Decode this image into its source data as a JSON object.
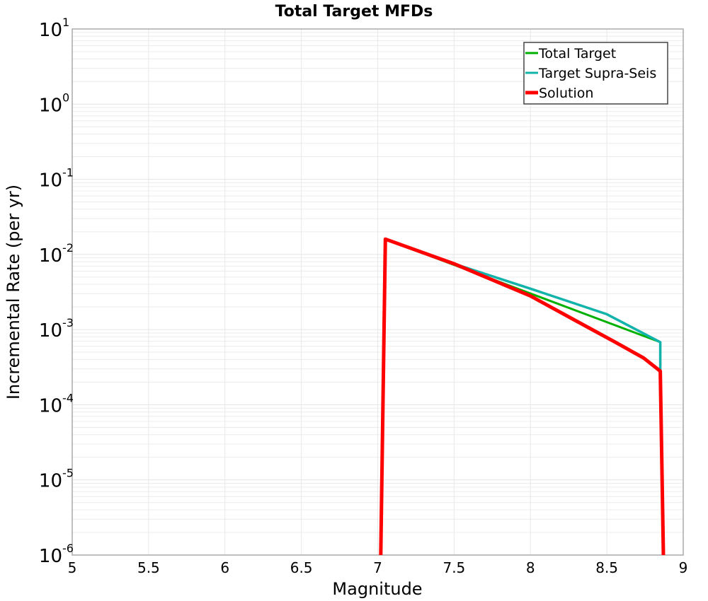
{
  "chart_data": {
    "type": "line",
    "title": "Total Target MFDs",
    "xlabel": "Magnitude",
    "ylabel": "Incremental Rate (per yr)",
    "xlim": [
      5,
      9
    ],
    "ylim": [
      1e-06,
      10
    ],
    "yscale": "log",
    "grid": true,
    "legend_position": "upper right",
    "x_ticks": [
      "5",
      "5.5",
      "6",
      "6.5",
      "7",
      "7.5",
      "8",
      "8.5",
      "9"
    ],
    "y_ticks": [
      {
        "base": "10",
        "exp": "1"
      },
      {
        "base": "10",
        "exp": "0"
      },
      {
        "base": "10",
        "exp": "-1"
      },
      {
        "base": "10",
        "exp": "-2"
      },
      {
        "base": "10",
        "exp": "-3"
      },
      {
        "base": "10",
        "exp": "-4"
      },
      {
        "base": "10",
        "exp": "-5"
      },
      {
        "base": "10",
        "exp": "-6"
      }
    ],
    "series": [
      {
        "name": "Total Target",
        "color": "#00b000",
        "x": [
          7.05,
          8.85,
          8.85
        ],
        "y": [
          0.016,
          0.00068,
          0.00028
        ]
      },
      {
        "name": "Target Supra-Seis",
        "color": "#11b3aa",
        "x": [
          7.05,
          7.5,
          8.0,
          8.5,
          8.85,
          8.85
        ],
        "y": [
          0.016,
          0.0075,
          0.0035,
          0.0016,
          0.00068,
          0.00028
        ]
      },
      {
        "name": "Solution",
        "color": "#ff0000",
        "x": [
          7.02,
          7.05,
          7.5,
          8.0,
          8.3,
          8.55,
          8.74,
          8.85,
          8.87
        ],
        "y": [
          1e-06,
          0.016,
          0.0075,
          0.0028,
          0.0013,
          0.00069,
          0.00042,
          0.00028,
          1e-06
        ]
      }
    ]
  }
}
